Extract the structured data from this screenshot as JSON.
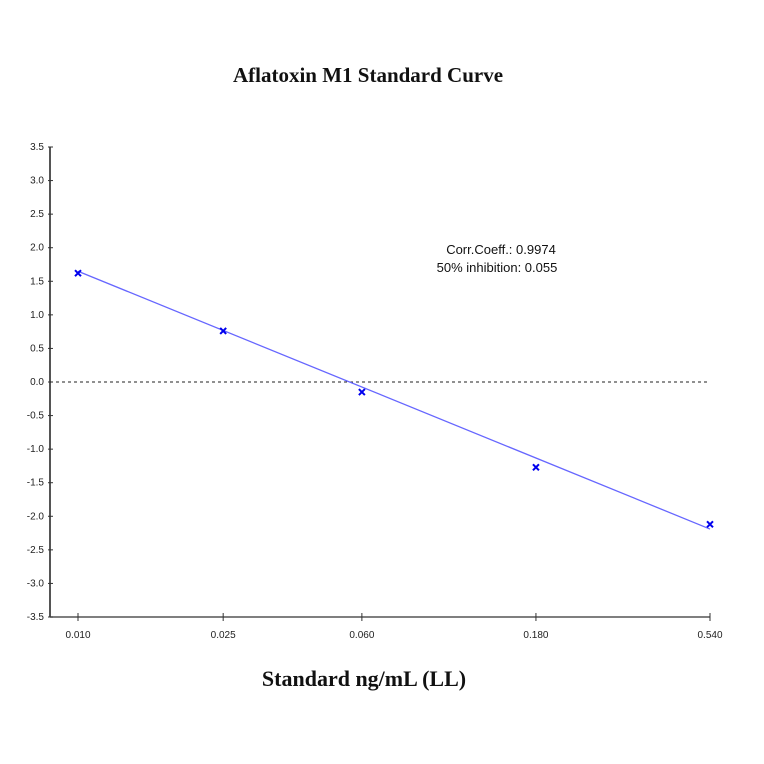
{
  "chart_data": {
    "type": "scatter",
    "title": "Aflatoxin M1 Standard Curve",
    "xlabel": "Standard ng/mL (LL)",
    "ylabel": "",
    "x_scale": "log",
    "xlim": [
      0.01,
      0.54
    ],
    "ylim": [
      -3.5,
      3.5
    ],
    "x_ticks": [
      "0.010",
      "0.025",
      "0.060",
      "0.180",
      "0.540"
    ],
    "y_ticks": [
      "3.5",
      "3.0",
      "2.5",
      "2.0",
      "1.5",
      "1.0",
      "0.5",
      "0.0",
      "-0.5",
      "-1.0",
      "-1.5",
      "-2.0",
      "-2.5",
      "-3.0",
      "-3.5"
    ],
    "points": {
      "x": [
        0.01,
        0.025,
        0.06,
        0.18,
        0.54
      ],
      "y": [
        1.62,
        0.76,
        -0.15,
        -1.27,
        -2.12
      ]
    },
    "fit_line": {
      "x": [
        0.01,
        0.54
      ],
      "y": [
        1.65,
        -2.19
      ]
    },
    "reference_line_y": 0,
    "annotations": [
      "Corr.Coeff.: 0.9974",
      "50% inhibition: 0.055"
    ],
    "grid": false,
    "colors": {
      "points": "#0000ee",
      "fit_line": "#6666ff",
      "axis": "#555555"
    }
  }
}
